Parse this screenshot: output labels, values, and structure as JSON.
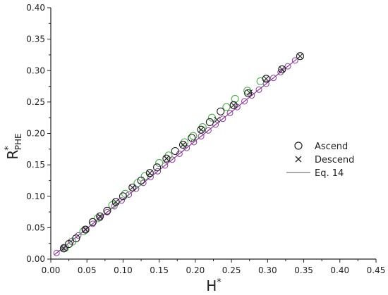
{
  "chart_data": {
    "type": "scatter",
    "xlabel": {
      "main": "H",
      "sup": "*"
    },
    "ylabel": {
      "main": "R",
      "sup": "*",
      "sub": "PHE"
    },
    "xlim": [
      0.0,
      0.45
    ],
    "ylim": [
      0.0,
      0.4
    ],
    "x_ticks": [
      "0.00",
      "0.05",
      "0.10",
      "0.15",
      "0.20",
      "0.25",
      "0.30",
      "0.35",
      "0.40",
      "0.45"
    ],
    "y_ticks": [
      "0.00",
      "0.05",
      "0.10",
      "0.15",
      "0.20",
      "0.25",
      "0.30",
      "0.35",
      "0.40"
    ],
    "grid": false,
    "legend_position": "right",
    "colors": {
      "ascend": "#222222",
      "descend": "#222222",
      "fit": "#8a3a9a",
      "green": "#4fae4f",
      "axis": "#222222"
    },
    "series": [
      {
        "name": "Ascend",
        "marker": "circle",
        "points": [
          [
            0.018,
            0.017
          ],
          [
            0.025,
            0.024
          ],
          [
            0.035,
            0.033
          ],
          [
            0.048,
            0.047
          ],
          [
            0.058,
            0.059
          ],
          [
            0.068,
            0.068
          ],
          [
            0.078,
            0.077
          ],
          [
            0.09,
            0.091
          ],
          [
            0.1,
            0.1
          ],
          [
            0.113,
            0.114
          ],
          [
            0.125,
            0.125
          ],
          [
            0.137,
            0.137
          ],
          [
            0.147,
            0.146
          ],
          [
            0.16,
            0.16
          ],
          [
            0.172,
            0.172
          ],
          [
            0.183,
            0.182
          ],
          [
            0.195,
            0.193
          ],
          [
            0.208,
            0.206
          ],
          [
            0.22,
            0.218
          ],
          [
            0.235,
            0.235
          ],
          [
            0.253,
            0.245
          ],
          [
            0.273,
            0.264
          ],
          [
            0.298,
            0.287
          ],
          [
            0.32,
            0.302
          ],
          [
            0.345,
            0.323
          ]
        ]
      },
      {
        "name": "Descend",
        "marker": "x",
        "points": [
          [
            0.018,
            0.017
          ],
          [
            0.048,
            0.047
          ],
          [
            0.068,
            0.068
          ],
          [
            0.09,
            0.091
          ],
          [
            0.113,
            0.114
          ],
          [
            0.137,
            0.137
          ],
          [
            0.16,
            0.16
          ],
          [
            0.183,
            0.182
          ],
          [
            0.208,
            0.206
          ],
          [
            0.23,
            0.222
          ],
          [
            0.253,
            0.245
          ],
          [
            0.275,
            0.265
          ],
          [
            0.298,
            0.287
          ],
          [
            0.32,
            0.302
          ],
          [
            0.345,
            0.323
          ]
        ]
      },
      {
        "name": "Eq. 14",
        "marker": "line",
        "x": [
          0.005,
          0.34
        ],
        "y": [
          0.007,
          0.318
        ]
      }
    ],
    "fit_markers": {
      "x": [
        0.008,
        0.018,
        0.028,
        0.038,
        0.048,
        0.058,
        0.068,
        0.078,
        0.088,
        0.098,
        0.108,
        0.118,
        0.128,
        0.138,
        0.148,
        0.158,
        0.168,
        0.178,
        0.188,
        0.198,
        0.208,
        0.218,
        0.228,
        0.238,
        0.248,
        0.258,
        0.268,
        0.278,
        0.288,
        0.298,
        0.308,
        0.318,
        0.328,
        0.338
      ]
    },
    "green_markers": [
      [
        0.02,
        0.018
      ],
      [
        0.03,
        0.028
      ],
      [
        0.045,
        0.044
      ],
      [
        0.065,
        0.065
      ],
      [
        0.085,
        0.086
      ],
      [
        0.103,
        0.104
      ],
      [
        0.12,
        0.121
      ],
      [
        0.13,
        0.132
      ],
      [
        0.15,
        0.153
      ],
      [
        0.163,
        0.165
      ],
      [
        0.185,
        0.186
      ],
      [
        0.197,
        0.196
      ],
      [
        0.21,
        0.21
      ],
      [
        0.223,
        0.225
      ],
      [
        0.243,
        0.242
      ],
      [
        0.255,
        0.255
      ],
      [
        0.272,
        0.268
      ],
      [
        0.29,
        0.283
      ]
    ]
  }
}
